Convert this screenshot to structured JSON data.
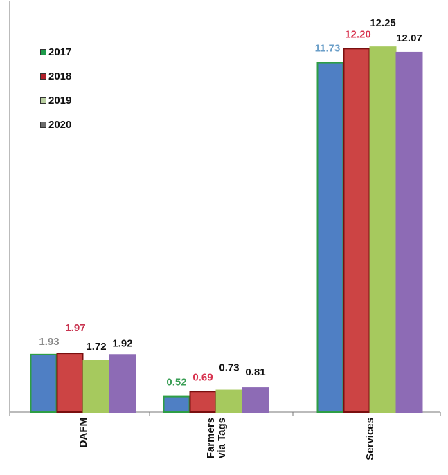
{
  "chart_data": {
    "type": "bar",
    "title": "",
    "xlabel": "",
    "ylabel": "",
    "ylim": [
      0,
      13.6
    ],
    "grid": false,
    "legend_position": "top-left",
    "categories": [
      [
        "DAFM"
      ],
      [
        "Farmers",
        "via Tags"
      ],
      [
        "Services"
      ]
    ],
    "series": [
      {
        "name": "2017",
        "values": [
          1.93,
          0.52,
          11.73
        ],
        "labels": [
          "1.93",
          "0.52",
          "11.73"
        ],
        "fill": "#4f7fc4",
        "stroke": "#2e9e45",
        "label_colors": [
          "#8a8a8a",
          "#3a9e55",
          "#6a9ec8"
        ],
        "legend_color": "#1e9a4a"
      },
      {
        "name": "2018",
        "values": [
          1.97,
          0.69,
          12.2
        ],
        "labels": [
          "1.97",
          "0.69",
          "12.20"
        ],
        "fill": "#cc4444",
        "stroke": "#7a0f0f",
        "label_colors": [
          "#c8334f",
          "#d8334f",
          "#d8334f"
        ],
        "legend_color": "#b0202a"
      },
      {
        "name": "2019",
        "values": [
          1.72,
          0.73,
          12.25
        ],
        "labels": [
          "1.72",
          "0.73",
          "12.25"
        ],
        "fill": "#a6c95e",
        "stroke": "#a6c95e",
        "label_colors": [
          "#111111",
          "#111111",
          "#111111"
        ],
        "legend_color": "#b8cfa0"
      },
      {
        "name": "2020",
        "values": [
          1.92,
          0.81,
          12.07
        ],
        "labels": [
          "1.92",
          "0.81",
          "12.07"
        ],
        "fill": "#8d6bb5",
        "stroke": "#8d6bb5",
        "label_colors": [
          "#111111",
          "#111111",
          "#111111"
        ],
        "legend_color": "#6b6b6b"
      }
    ]
  }
}
